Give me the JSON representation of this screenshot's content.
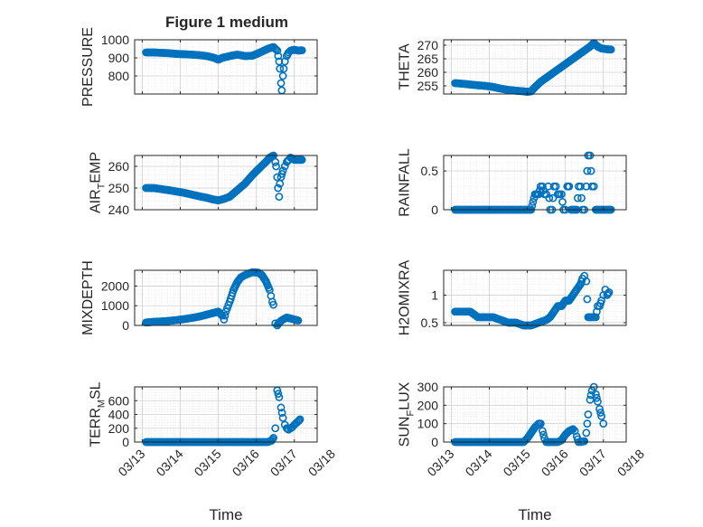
{
  "figure_title": "Figure 1 medium",
  "colors": {
    "marker": "#0072BD",
    "axis": "#262626",
    "grid": "#dfdfdf"
  },
  "x_axis": {
    "label": "Time",
    "ticks": [
      "03/13",
      "03/14",
      "03/15",
      "03/16",
      "03/17",
      "03/18"
    ],
    "tick_values": [
      0,
      1,
      2,
      3,
      4,
      5
    ]
  },
  "chart_data": [
    {
      "type": "scatter",
      "name": "pressure",
      "ylabel": "PRESSURE",
      "ylabel_sub": null,
      "ylim": [
        700,
        1000
      ],
      "yticks": [
        800,
        900,
        1000
      ],
      "grid": true,
      "points": [
        [
          0.1,
          930
        ],
        [
          0.3,
          930
        ],
        [
          0.5,
          928
        ],
        [
          0.7,
          926
        ],
        [
          0.9,
          922
        ],
        [
          1.1,
          920
        ],
        [
          1.3,
          918
        ],
        [
          1.5,
          915
        ],
        [
          1.7,
          910
        ],
        [
          1.9,
          900
        ],
        [
          2.0,
          890
        ],
        [
          2.1,
          900
        ],
        [
          2.3,
          910
        ],
        [
          2.5,
          918
        ],
        [
          2.7,
          910
        ],
        [
          2.9,
          912
        ],
        [
          3.1,
          930
        ],
        [
          3.3,
          950
        ],
        [
          3.45,
          960
        ],
        [
          3.55,
          940
        ],
        [
          3.6,
          880
        ],
        [
          3.62,
          840
        ],
        [
          3.65,
          760
        ],
        [
          3.67,
          720
        ],
        [
          3.7,
          800
        ],
        [
          3.72,
          840
        ],
        [
          3.75,
          880
        ],
        [
          3.8,
          910
        ],
        [
          3.85,
          930
        ],
        [
          3.9,
          940
        ],
        [
          4.0,
          945
        ],
        [
          4.1,
          940
        ],
        [
          4.2,
          942
        ]
      ]
    },
    {
      "type": "scatter",
      "name": "theta",
      "ylabel": "THETA",
      "ylabel_sub": null,
      "ylim": [
        252,
        272
      ],
      "yticks": [
        255,
        260,
        265,
        270
      ],
      "grid": true,
      "points": [
        [
          0.1,
          256
        ],
        [
          0.3,
          255.8
        ],
        [
          0.5,
          255.5
        ],
        [
          0.7,
          255.2
        ],
        [
          0.9,
          255
        ],
        [
          1.1,
          254.6
        ],
        [
          1.3,
          254
        ],
        [
          1.5,
          253.5
        ],
        [
          1.7,
          253.2
        ],
        [
          1.9,
          253
        ],
        [
          2.0,
          252.8
        ],
        [
          2.1,
          253
        ],
        [
          2.2,
          254.5
        ],
        [
          2.35,
          256.5
        ],
        [
          2.5,
          258
        ],
        [
          2.7,
          260
        ],
        [
          2.9,
          262
        ],
        [
          3.1,
          264
        ],
        [
          3.3,
          266
        ],
        [
          3.5,
          268
        ],
        [
          3.65,
          269.5
        ],
        [
          3.75,
          270.8
        ],
        [
          3.85,
          269.5
        ],
        [
          3.95,
          268.8
        ],
        [
          4.1,
          268.5
        ],
        [
          4.2,
          268.4
        ]
      ]
    },
    {
      "type": "scatter",
      "name": "air_temp",
      "ylabel": "AIR",
      "ylabel_sub": "T",
      "ylabel_after": "EMP",
      "ylim": [
        240,
        265
      ],
      "yticks": [
        240,
        250,
        260
      ],
      "grid": true,
      "points": [
        [
          0.1,
          250
        ],
        [
          0.3,
          250
        ],
        [
          0.5,
          249.5
        ],
        [
          0.7,
          249
        ],
        [
          0.9,
          248.4
        ],
        [
          1.1,
          247.8
        ],
        [
          1.3,
          247
        ],
        [
          1.5,
          246.2
        ],
        [
          1.7,
          245.5
        ],
        [
          1.85,
          244.8
        ],
        [
          2.0,
          244.3
        ],
        [
          2.15,
          245
        ],
        [
          2.3,
          246
        ],
        [
          2.5,
          249
        ],
        [
          2.7,
          252
        ],
        [
          2.9,
          256
        ],
        [
          3.1,
          259.5
        ],
        [
          3.25,
          262
        ],
        [
          3.35,
          264
        ],
        [
          3.45,
          265
        ],
        [
          3.5,
          262
        ],
        [
          3.52,
          260
        ],
        [
          3.55,
          255
        ],
        [
          3.57,
          250
        ],
        [
          3.6,
          246
        ],
        [
          3.62,
          252
        ],
        [
          3.65,
          255
        ],
        [
          3.7,
          258
        ],
        [
          3.75,
          260
        ],
        [
          3.8,
          262
        ],
        [
          3.85,
          263
        ],
        [
          3.9,
          264
        ],
        [
          4.0,
          263
        ],
        [
          4.2,
          263
        ]
      ]
    },
    {
      "type": "scatter",
      "name": "rainfall",
      "ylabel": "RAINFALL",
      "ylabel_sub": null,
      "ylim": [
        0,
        0.7
      ],
      "yticks": [
        0,
        0.5
      ],
      "grid": true,
      "points": [
        [
          0.1,
          0
        ],
        [
          0.3,
          0
        ],
        [
          0.5,
          0
        ],
        [
          0.7,
          0
        ],
        [
          0.9,
          0
        ],
        [
          1.1,
          0
        ],
        [
          1.3,
          0
        ],
        [
          1.5,
          0
        ],
        [
          1.7,
          0
        ],
        [
          1.9,
          0
        ],
        [
          2.1,
          0
        ],
        [
          2.2,
          0.2
        ],
        [
          2.3,
          0.2
        ],
        [
          2.35,
          0.3
        ],
        [
          2.4,
          0.3
        ],
        [
          2.45,
          0.2
        ],
        [
          2.5,
          0.2
        ],
        [
          2.55,
          0.3
        ],
        [
          2.6,
          0
        ],
        [
          2.65,
          0
        ],
        [
          2.7,
          0.3
        ],
        [
          2.75,
          0.3
        ],
        [
          2.8,
          0.2
        ],
        [
          2.85,
          0.2
        ],
        [
          2.9,
          0.2
        ],
        [
          2.95,
          0
        ],
        [
          3.0,
          0
        ],
        [
          3.05,
          0.3
        ],
        [
          3.1,
          0.3
        ],
        [
          3.15,
          0
        ],
        [
          3.2,
          0
        ],
        [
          3.3,
          0
        ],
        [
          3.35,
          0.3
        ],
        [
          3.4,
          0.3
        ],
        [
          3.45,
          0
        ],
        [
          3.5,
          0
        ],
        [
          3.55,
          0.3
        ],
        [
          3.6,
          0.7
        ],
        [
          3.65,
          0.7
        ],
        [
          3.7,
          0.3
        ],
        [
          3.75,
          0.3
        ],
        [
          3.8,
          0
        ],
        [
          3.9,
          0
        ],
        [
          4.0,
          0
        ],
        [
          4.1,
          0
        ],
        [
          4.2,
          0
        ]
      ]
    },
    {
      "type": "scatter",
      "name": "mixdepth",
      "ylabel": "MIXDEPTH",
      "ylabel_sub": null,
      "ylim": [
        0,
        2800
      ],
      "yticks": [
        0,
        1000,
        2000
      ],
      "grid": true,
      "points": [
        [
          0.1,
          150
        ],
        [
          0.3,
          180
        ],
        [
          0.5,
          200
        ],
        [
          0.7,
          230
        ],
        [
          0.9,
          270
        ],
        [
          1.1,
          320
        ],
        [
          1.3,
          380
        ],
        [
          1.5,
          450
        ],
        [
          1.7,
          550
        ],
        [
          1.9,
          650
        ],
        [
          2.0,
          700
        ],
        [
          2.1,
          500
        ],
        [
          2.15,
          300
        ],
        [
          2.2,
          700
        ],
        [
          2.3,
          1200
        ],
        [
          2.4,
          1800
        ],
        [
          2.5,
          2200
        ],
        [
          2.6,
          2450
        ],
        [
          2.75,
          2600
        ],
        [
          2.9,
          2700
        ],
        [
          3.05,
          2680
        ],
        [
          3.15,
          2550
        ],
        [
          3.25,
          2250
        ],
        [
          3.35,
          1800
        ],
        [
          3.42,
          1200
        ],
        [
          3.45,
          1050
        ],
        [
          3.5,
          100
        ],
        [
          3.55,
          0
        ],
        [
          3.6,
          150
        ],
        [
          3.7,
          300
        ],
        [
          3.8,
          400
        ],
        [
          3.9,
          350
        ],
        [
          4.0,
          300
        ],
        [
          4.1,
          250
        ]
      ]
    },
    {
      "type": "scatter",
      "name": "h2omixra",
      "ylabel": "H2OMIXRA",
      "ylabel_sub": null,
      "ylim": [
        0.45,
        1.45
      ],
      "yticks": [
        0.5,
        1
      ],
      "grid": true,
      "points": [
        [
          0.1,
          0.7
        ],
        [
          0.3,
          0.7
        ],
        [
          0.5,
          0.7
        ],
        [
          0.7,
          0.6
        ],
        [
          0.9,
          0.6
        ],
        [
          1.1,
          0.6
        ],
        [
          1.3,
          0.55
        ],
        [
          1.5,
          0.5
        ],
        [
          1.7,
          0.5
        ],
        [
          1.9,
          0.45
        ],
        [
          2.1,
          0.45
        ],
        [
          2.3,
          0.5
        ],
        [
          2.5,
          0.55
        ],
        [
          2.6,
          0.6
        ],
        [
          2.7,
          0.7
        ],
        [
          2.8,
          0.8
        ],
        [
          2.9,
          0.8
        ],
        [
          3.0,
          0.9
        ],
        [
          3.1,
          0.9
        ],
        [
          3.2,
          1.0
        ],
        [
          3.3,
          1.1
        ],
        [
          3.4,
          1.2
        ],
        [
          3.45,
          1.3
        ],
        [
          3.5,
          1.35
        ],
        [
          3.55,
          1.25
        ],
        [
          3.6,
          0.6
        ],
        [
          3.7,
          0.6
        ],
        [
          3.8,
          0.6
        ],
        [
          3.85,
          0.8
        ],
        [
          3.9,
          0.8
        ],
        [
          3.95,
          0.9
        ],
        [
          4.0,
          1.0
        ],
        [
          4.05,
          1.1
        ],
        [
          4.1,
          1.0
        ],
        [
          4.15,
          1.05
        ]
      ]
    },
    {
      "type": "scatter",
      "name": "terr_msl",
      "ylabel": "TERR",
      "ylabel_sub": "M",
      "ylabel_after": "SL",
      "ylim": [
        0,
        800
      ],
      "yticks": [
        0,
        200,
        400,
        600
      ],
      "grid": true,
      "points": [
        [
          0.1,
          0
        ],
        [
          0.3,
          0
        ],
        [
          0.5,
          0
        ],
        [
          0.7,
          0
        ],
        [
          0.9,
          0
        ],
        [
          1.1,
          0
        ],
        [
          1.3,
          0
        ],
        [
          1.5,
          0
        ],
        [
          1.7,
          0
        ],
        [
          1.9,
          0
        ],
        [
          2.1,
          0
        ],
        [
          2.3,
          0
        ],
        [
          2.5,
          0
        ],
        [
          2.7,
          0
        ],
        [
          2.9,
          0
        ],
        [
          3.1,
          0
        ],
        [
          3.3,
          0
        ],
        [
          3.4,
          20
        ],
        [
          3.45,
          60
        ],
        [
          3.5,
          200
        ],
        [
          3.55,
          750
        ],
        [
          3.6,
          650
        ],
        [
          3.65,
          500
        ],
        [
          3.7,
          350
        ],
        [
          3.75,
          250
        ],
        [
          3.8,
          200
        ],
        [
          3.85,
          180
        ],
        [
          3.9,
          200
        ],
        [
          3.95,
          220
        ],
        [
          4.0,
          250
        ],
        [
          4.1,
          300
        ],
        [
          4.15,
          330
        ]
      ]
    },
    {
      "type": "scatter",
      "name": "sun_flux",
      "ylabel": "SUN",
      "ylabel_sub": "F",
      "ylabel_after": "LUX",
      "ylim": [
        0,
        300
      ],
      "yticks": [
        0,
        100,
        200,
        300
      ],
      "grid": true,
      "points": [
        [
          0.1,
          0
        ],
        [
          0.3,
          0
        ],
        [
          0.5,
          0
        ],
        [
          0.7,
          0
        ],
        [
          0.9,
          0
        ],
        [
          1.1,
          0
        ],
        [
          1.3,
          0
        ],
        [
          1.5,
          0
        ],
        [
          1.7,
          0
        ],
        [
          1.9,
          0
        ],
        [
          2.0,
          20
        ],
        [
          2.1,
          50
        ],
        [
          2.2,
          80
        ],
        [
          2.3,
          100
        ],
        [
          2.35,
          100
        ],
        [
          2.4,
          60
        ],
        [
          2.45,
          20
        ],
        [
          2.5,
          0
        ],
        [
          2.6,
          0
        ],
        [
          2.7,
          0
        ],
        [
          2.8,
          0
        ],
        [
          2.9,
          10
        ],
        [
          3.0,
          40
        ],
        [
          3.1,
          60
        ],
        [
          3.2,
          70
        ],
        [
          3.25,
          60
        ],
        [
          3.3,
          30
        ],
        [
          3.35,
          0
        ],
        [
          3.4,
          0
        ],
        [
          3.5,
          5
        ],
        [
          3.55,
          50
        ],
        [
          3.6,
          150
        ],
        [
          3.65,
          230
        ],
        [
          3.7,
          280
        ],
        [
          3.75,
          300
        ],
        [
          3.8,
          260
        ],
        [
          3.85,
          220
        ],
        [
          3.9,
          180
        ],
        [
          3.95,
          140
        ],
        [
          4.0,
          100
        ]
      ]
    }
  ]
}
